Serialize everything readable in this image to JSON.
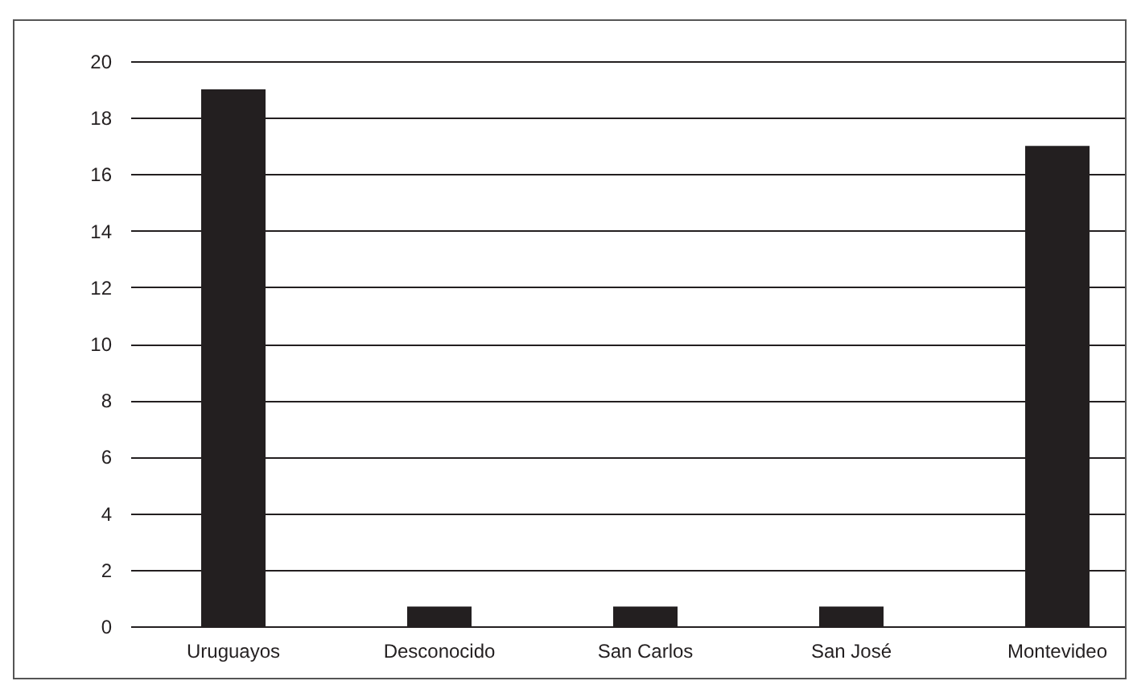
{
  "chart_data": {
    "type": "bar",
    "categories": [
      "Uruguayos",
      "Desconocido",
      "San Carlos",
      "San José",
      "Montevideo"
    ],
    "values": [
      19,
      0.7,
      0.7,
      0.7,
      17
    ],
    "color": "#231f20",
    "ylim": [
      0,
      20
    ],
    "yticks": [
      0,
      2,
      4,
      6,
      8,
      10,
      12,
      14,
      16,
      18,
      20
    ],
    "grid": "y"
  }
}
